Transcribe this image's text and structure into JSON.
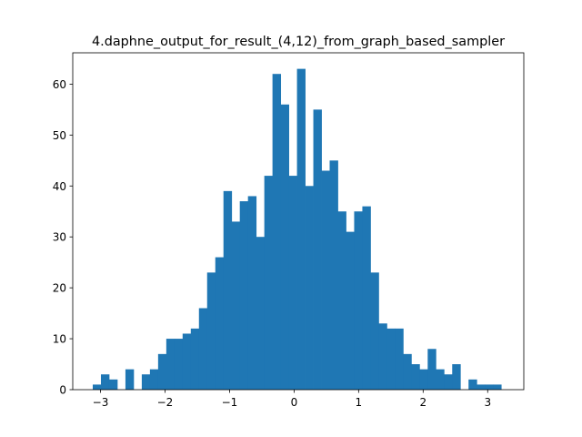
{
  "chart_data": {
    "type": "bar",
    "title": "4.daphne_output_for_result_(4,12)_from_graph_based_sampler",
    "xlabel": "",
    "ylabel": "",
    "xlim": [
      -3.43,
      3.56
    ],
    "ylim": [
      0,
      66.15
    ],
    "xticks": [
      -3,
      -2,
      -1,
      0,
      1,
      2,
      3
    ],
    "xtick_labels": [
      "−3",
      "−2",
      "−1",
      "0",
      "1",
      "2",
      "3"
    ],
    "yticks": [
      0,
      10,
      20,
      30,
      40,
      50,
      60
    ],
    "ytick_labels": [
      "0",
      "10",
      "20",
      "30",
      "40",
      "50",
      "60"
    ],
    "grid": false,
    "legend": "none",
    "bar_color": "#1f77b4",
    "bin_start": -3.12,
    "bin_width": 0.1266,
    "counts": [
      1,
      3,
      2,
      0,
      4,
      0,
      3,
      4,
      7,
      10,
      10,
      11,
      12,
      16,
      23,
      26,
      39,
      33,
      37,
      38,
      30,
      42,
      62,
      56,
      42,
      63,
      40,
      55,
      43,
      45,
      35,
      31,
      35,
      36,
      23,
      13,
      12,
      12,
      7,
      5,
      4,
      8,
      4,
      3,
      5,
      0,
      2,
      1,
      1,
      1
    ]
  }
}
